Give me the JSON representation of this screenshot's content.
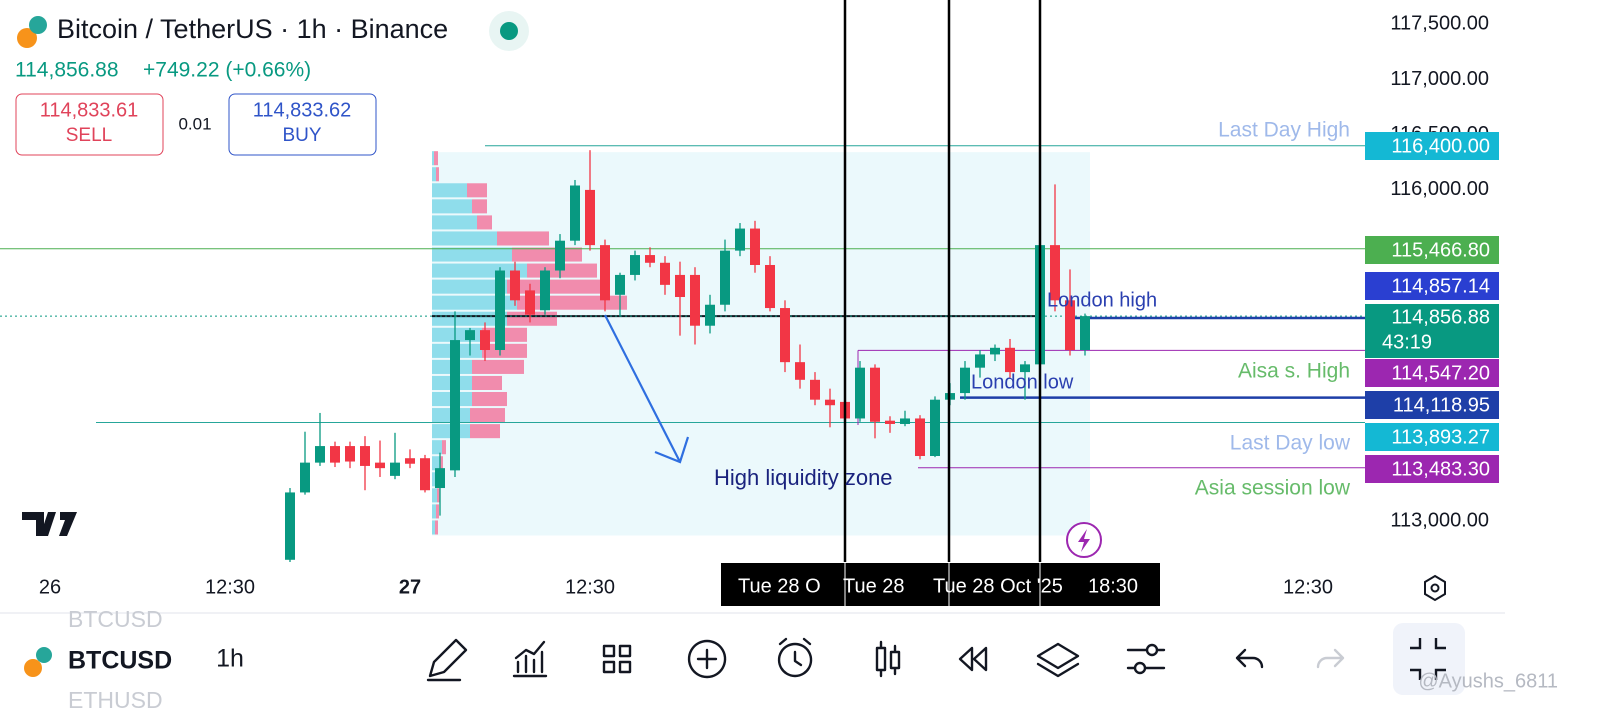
{
  "header": {
    "title": "Bitcoin / TetherUS · 1h · Binance",
    "price": "114,856.88",
    "change": "+749.22 (+0.66%)",
    "sell": {
      "price": "114,833.61",
      "label": "SELL"
    },
    "spread": "0.01",
    "buy": {
      "price": "114,833.62",
      "label": "BUY"
    }
  },
  "chart_data": {
    "type": "candlestick",
    "up_color": "#089981",
    "down_color": "#f23645",
    "ylim": [
      112630,
      117720
    ],
    "yticks": [
      {
        "value": 117500,
        "label": "117,500.00"
      },
      {
        "value": 117000,
        "label": "117,000.00"
      },
      {
        "value": 116500,
        "label": "116,500.00"
      },
      {
        "value": 116000,
        "label": "116,000.00"
      },
      {
        "value": 113000,
        "label": "113,000.00"
      }
    ],
    "x_labels": [
      "26",
      "12:30",
      "27",
      "12:30",
      "12:30"
    ],
    "candles": {
      "open": [
        112650,
        113260,
        113530,
        113680,
        113680,
        113680,
        113530,
        113410,
        113570,
        113570,
        113300,
        113460,
        114640,
        114730,
        114550,
        115270,
        115090,
        114910,
        115270,
        115540,
        116000,
        115500,
        115050,
        115230,
        115410,
        115340,
        115230,
        115230,
        114770,
        114960,
        115450,
        115650,
        115320,
        114930,
        114440,
        114280,
        114100,
        114080,
        113930,
        114390,
        113910,
        113880,
        113930,
        113590,
        114100,
        114160,
        114390,
        114510,
        114570,
        114350,
        114420,
        115500,
        115000,
        114550
      ],
      "high": [
        113300,
        113810,
        113980,
        113720,
        113720,
        113770,
        113730,
        113800,
        113650,
        113600,
        113620,
        114900,
        114750,
        114800,
        115300,
        115350,
        115150,
        115300,
        115600,
        116090,
        116360,
        115550,
        115250,
        115450,
        115480,
        115400,
        115350,
        115300,
        115050,
        115550,
        115700,
        115720,
        115400,
        115000,
        114600,
        114350,
        114200,
        114200,
        114450,
        114420,
        113950,
        114000,
        113960,
        114130,
        114250,
        114450,
        114550,
        114600,
        114650,
        114450,
        115500,
        116050,
        115280,
        114880
      ],
      "low": [
        112600,
        113240,
        113500,
        113490,
        113480,
        113280,
        113400,
        113380,
        113480,
        113260,
        113050,
        113400,
        114500,
        114450,
        114500,
        114950,
        114800,
        114870,
        115200,
        115500,
        115450,
        114900,
        114850,
        115180,
        115300,
        115050,
        114680,
        114600,
        114700,
        114900,
        115400,
        115250,
        114900,
        114350,
        114200,
        114050,
        113850,
        113750,
        113900,
        113750,
        113800,
        113860,
        113560,
        113580,
        114050,
        114100,
        114300,
        114450,
        114300,
        114100,
        114380,
        114900,
        114500,
        114500
      ],
      "close": [
        113260,
        113530,
        113680,
        113530,
        113540,
        113500,
        113480,
        113530,
        113520,
        113280,
        113480,
        114640,
        114730,
        114550,
        115270,
        115000,
        114870,
        115270,
        115540,
        116040,
        115500,
        115000,
        115230,
        115410,
        115340,
        115140,
        115030,
        114770,
        114960,
        115450,
        115650,
        115320,
        114930,
        114440,
        114280,
        114100,
        114050,
        113930,
        114390,
        113900,
        113880,
        113930,
        113590,
        114100,
        114160,
        114390,
        114510,
        114570,
        114350,
        114420,
        115500,
        115000,
        114550,
        114856.88
      ]
    },
    "volume_profile": {
      "range": [
        116360,
        112870
      ],
      "buy": [
        2,
        4,
        35,
        40,
        45,
        65,
        80,
        95,
        75,
        85,
        75,
        50,
        50,
        40,
        40,
        40,
        38,
        38,
        10,
        8,
        6,
        5,
        4,
        3
      ],
      "sell": [
        4,
        3,
        20,
        15,
        15,
        52,
        70,
        70,
        100,
        110,
        50,
        45,
        45,
        52,
        30,
        35,
        35,
        30,
        4,
        3,
        3,
        3,
        3,
        3
      ]
    },
    "levels": [
      {
        "name": "Last Day High",
        "value": 116400,
        "label": "116,400.00",
        "color": "#14b8d4"
      },
      {
        "value": 115466.8,
        "label": "115,466.80",
        "color": "#4caf50"
      },
      {
        "value": 114857.14,
        "label": "114,857.14",
        "color": "#2a3fd1"
      },
      {
        "value": 114856.88,
        "label": "114,856.88",
        "color": "#089981"
      },
      {
        "name": "Aisa s. High",
        "value": 114547.2,
        "label": "114,547.20",
        "color": "#9c27b0"
      },
      {
        "value": 114118.95,
        "label": "114,118.95",
        "color": "#1e3fa8"
      },
      {
        "name": "Last Day low",
        "value": 113893.27,
        "label": "113,893.27",
        "color": "#14b8d4"
      },
      {
        "name": "Asia session low",
        "value": 113483.3,
        "label": "113,483.30",
        "color": "#9c27b0"
      }
    ],
    "countdown": "43:19",
    "annotations": [
      {
        "text": "London high",
        "value": 114840
      },
      {
        "text": "London low"
      },
      {
        "text": "High liquidity zone"
      }
    ],
    "crosshair_times": [
      "Tue 28 O",
      "Tue 28",
      "Tue 28 Oct '25",
      "18:30"
    ]
  },
  "toolbar": {
    "symbols": [
      "BTCUSD",
      "BTCUSD",
      "ETHUSD"
    ],
    "interval": "1h",
    "watermark": "@Ayushs_6811"
  }
}
